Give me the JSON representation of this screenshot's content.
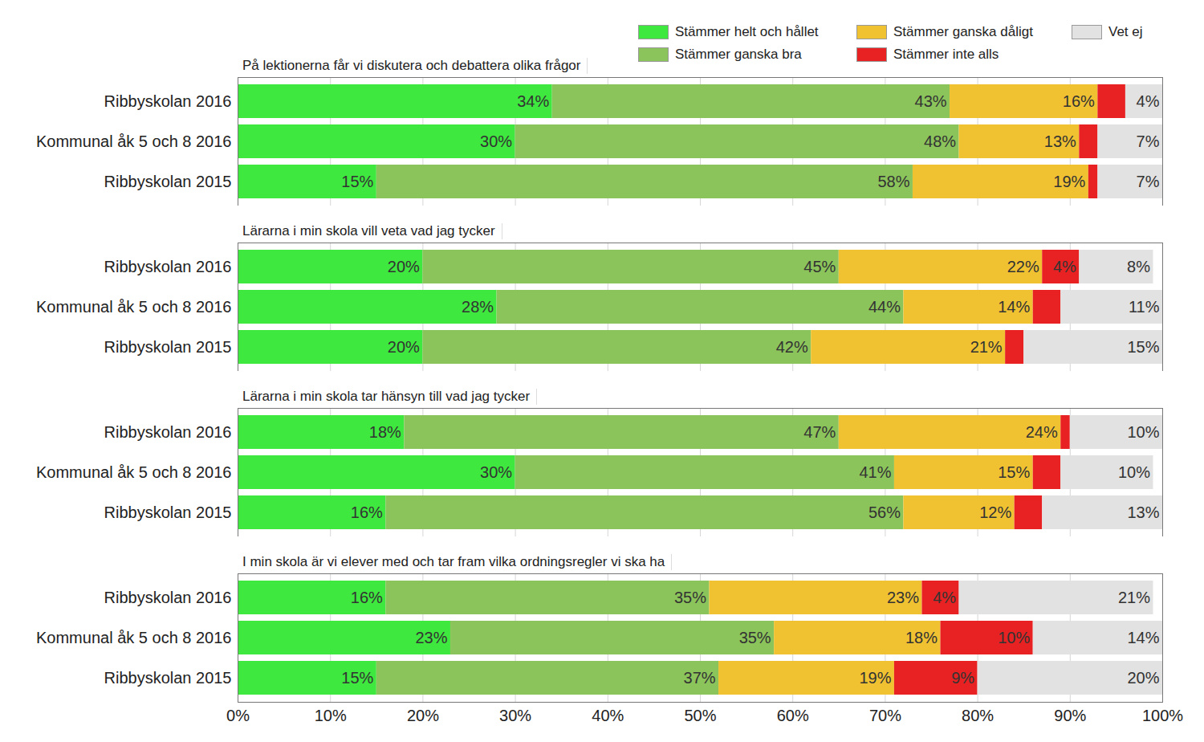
{
  "chart_data": {
    "type": "bar",
    "orientation": "horizontal",
    "stacked": true,
    "data_labels": true,
    "legend": "top-right",
    "grid": true,
    "xlim": [
      0,
      100
    ],
    "xticks": [
      {
        "value": 0,
        "label": "0%"
      },
      {
        "value": 10,
        "label": "10%"
      },
      {
        "value": 20,
        "label": "20%"
      },
      {
        "value": 30,
        "label": "30%"
      },
      {
        "value": 40,
        "label": "40%"
      },
      {
        "value": 50,
        "label": "50%"
      },
      {
        "value": 60,
        "label": "60%"
      },
      {
        "value": 70,
        "label": "70%"
      },
      {
        "value": 80,
        "label": "80%"
      },
      {
        "value": 90,
        "label": "90%"
      },
      {
        "value": 100,
        "label": "100%"
      }
    ],
    "series": [
      {
        "name": "Stämmer helt och hållet",
        "color": "#3ee83e"
      },
      {
        "name": "Stämmer ganska bra",
        "color": "#8cc45c"
      },
      {
        "name": "Stämmer ganska dåligt",
        "color": "#f0c232"
      },
      {
        "name": "Stämmer inte alls",
        "color": "#e82222"
      },
      {
        "name": "Vet ej",
        "color": "#e2e2e2"
      }
    ],
    "panels": [
      {
        "title": "På lektionerna får vi diskutera och debattera olika frågor",
        "categories": [
          "Ribbyskolan 2016",
          "Kommunal åk 5 och 8 2016",
          "Ribbyskolan 2015"
        ],
        "values": [
          [
            34,
            30,
            15
          ],
          [
            43,
            48,
            58
          ],
          [
            16,
            13,
            19
          ],
          [
            3,
            2,
            1
          ],
          [
            4,
            7,
            7
          ]
        ],
        "value_labels": [
          [
            "34%",
            "30%",
            "15%"
          ],
          [
            "43%",
            "48%",
            "58%"
          ],
          [
            "16%",
            "13%",
            "19%"
          ],
          [
            null,
            null,
            null
          ],
          [
            "4%",
            "7%",
            "7%"
          ]
        ]
      },
      {
        "title": "Lärarna i min skola vill veta vad jag tycker",
        "categories": [
          "Ribbyskolan 2016",
          "Kommunal åk 5 och 8 2016",
          "Ribbyskolan 2015"
        ],
        "values": [
          [
            20,
            28,
            20
          ],
          [
            45,
            44,
            42
          ],
          [
            22,
            14,
            21
          ],
          [
            4,
            3,
            2
          ],
          [
            8,
            11,
            15
          ]
        ],
        "value_labels": [
          [
            "20%",
            "28%",
            "20%"
          ],
          [
            "45%",
            "44%",
            "42%"
          ],
          [
            "22%",
            "14%",
            "21%"
          ],
          [
            "4%",
            null,
            null
          ],
          [
            "8%",
            "11%",
            "15%"
          ]
        ]
      },
      {
        "title": "Lärarna i min skola tar hänsyn till vad jag tycker",
        "categories": [
          "Ribbyskolan 2016",
          "Kommunal åk 5 och 8 2016",
          "Ribbyskolan 2015"
        ],
        "values": [
          [
            18,
            30,
            16
          ],
          [
            47,
            41,
            56
          ],
          [
            24,
            15,
            12
          ],
          [
            1,
            3,
            3
          ],
          [
            10,
            10,
            13
          ]
        ],
        "value_labels": [
          [
            "18%",
            "30%",
            "16%"
          ],
          [
            "47%",
            "41%",
            "56%"
          ],
          [
            "24%",
            "15%",
            "12%"
          ],
          [
            null,
            null,
            null
          ],
          [
            "10%",
            "10%",
            "13%"
          ]
        ]
      },
      {
        "title": "I min skola är vi elever med och tar fram vilka ordningsregler vi ska ha",
        "categories": [
          "Ribbyskolan 2016",
          "Kommunal åk 5 och 8 2016",
          "Ribbyskolan 2015"
        ],
        "values": [
          [
            16,
            23,
            15
          ],
          [
            35,
            35,
            37
          ],
          [
            23,
            18,
            19
          ],
          [
            4,
            10,
            9
          ],
          [
            21,
            14,
            20
          ]
        ],
        "value_labels": [
          [
            "16%",
            "23%",
            "15%"
          ],
          [
            "35%",
            "35%",
            "37%"
          ],
          [
            "23%",
            "18%",
            "19%"
          ],
          [
            "4%",
            "10%",
            "9%"
          ],
          [
            "21%",
            "14%",
            "20%"
          ]
        ]
      }
    ]
  }
}
